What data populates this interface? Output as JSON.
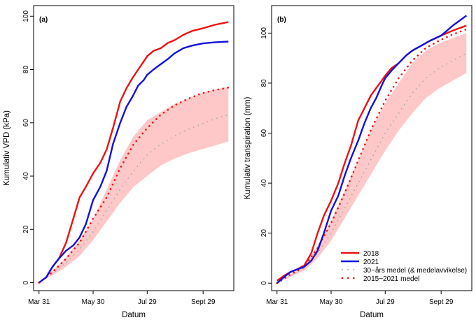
{
  "figure": {
    "x_axis_label": "Datum",
    "x_tick_labels": [
      "Mar 31",
      "May 30",
      "Jul 29",
      "Sept 29"
    ]
  },
  "legend": {
    "items": [
      {
        "label": "2018",
        "color": "#ee1111",
        "style": "solid"
      },
      {
        "label": "2021",
        "color": "#1111dd",
        "style": "solid"
      },
      {
        "label": "30−års medel (& medelavvikelse)",
        "color": "#aaaaaa",
        "style": "dotted"
      },
      {
        "label": "2015−2021 medel",
        "color": "#ee1111",
        "style": "dotted"
      }
    ]
  },
  "colors": {
    "red": "#ee1111",
    "blue": "#1111dd",
    "band": "#ffc8c8",
    "grey": "#aaaaaa"
  },
  "chart_data": [
    {
      "type": "line",
      "panel_label": "(a)",
      "xlabel": "Datum",
      "ylabel": "Kumulativ VPD (kPa)",
      "x_ticks": [
        "Mar 31",
        "May 30",
        "Jul 29",
        "Sept 29"
      ],
      "x_tick_days": [
        0,
        60,
        120,
        182
      ],
      "y_ticks": [
        0,
        20,
        40,
        60,
        80,
        100
      ],
      "xlim": [
        -6,
        216
      ],
      "ylim": [
        -3,
        104
      ],
      "x_unit": "days since Mar 31",
      "series": [
        {
          "name": "2018",
          "style": "solid",
          "color": "#ee1111",
          "x": [
            0,
            8,
            15,
            22,
            30,
            38,
            45,
            52,
            60,
            68,
            75,
            82,
            90,
            97,
            104,
            110,
            116,
            120,
            127,
            135,
            143,
            150,
            160,
            170,
            182,
            195,
            210
          ],
          "y": [
            0,
            2,
            6,
            9,
            15,
            24,
            32,
            36,
            41,
            45,
            50,
            58,
            68,
            73,
            77,
            80,
            83,
            85,
            87,
            88,
            90,
            91,
            93,
            94.5,
            95.5,
            96.8,
            97.8
          ]
        },
        {
          "name": "2021",
          "style": "solid",
          "color": "#1111dd",
          "x": [
            0,
            8,
            15,
            22,
            30,
            38,
            45,
            52,
            60,
            68,
            75,
            82,
            90,
            97,
            104,
            110,
            116,
            120,
            127,
            135,
            143,
            150,
            160,
            170,
            182,
            195,
            210
          ],
          "y": [
            0,
            2,
            6,
            9,
            12,
            14,
            17,
            22,
            31,
            36,
            42,
            52,
            60,
            66,
            70,
            74,
            76,
            78,
            80,
            82,
            84,
            86,
            88,
            89,
            89.8,
            90.2,
            90.5
          ]
        },
        {
          "name": "30−års medel (& medelavvikelse)",
          "style": "dotted",
          "color": "#aaaaaa",
          "x": [
            0,
            15,
            30,
            45,
            60,
            75,
            90,
            105,
            120,
            135,
            150,
            165,
            180,
            195,
            210
          ],
          "y": [
            0,
            3.5,
            7.5,
            12.5,
            19,
            27,
            35,
            42,
            48,
            52,
            55,
            57.5,
            59.5,
            61.5,
            63
          ],
          "band_lower": [
            0,
            2.8,
            6,
            10,
            16,
            23,
            30,
            36,
            40,
            44,
            46.5,
            48.5,
            50,
            51.5,
            53
          ],
          "band_upper": [
            0,
            4.5,
            9.5,
            16,
            24,
            35,
            46,
            55,
            61,
            64,
            67,
            69,
            71,
            72.5,
            73.5
          ]
        },
        {
          "name": "2015−2021 medel",
          "style": "dotted",
          "color": "#ee1111",
          "x": [
            0,
            15,
            30,
            45,
            60,
            75,
            90,
            105,
            120,
            135,
            150,
            165,
            180,
            195,
            210
          ],
          "y": [
            0,
            4,
            9,
            15,
            24,
            32,
            43,
            52,
            58,
            63,
            66.5,
            69,
            71,
            72.3,
            73.2
          ]
        }
      ]
    },
    {
      "type": "line",
      "panel_label": "(b)",
      "xlabel": "Datum",
      "ylabel": "Kumulativ transpiration (mm)",
      "x_ticks": [
        "Mar 31",
        "May 30",
        "Jul 29",
        "Sept 29"
      ],
      "x_tick_days": [
        0,
        60,
        120,
        182
      ],
      "y_ticks": [
        0,
        20,
        40,
        60,
        80,
        100
      ],
      "xlim": [
        -6,
        216
      ],
      "ylim": [
        -3,
        111
      ],
      "x_unit": "days since Mar 31",
      "series": [
        {
          "name": "2018",
          "style": "solid",
          "color": "#ee1111",
          "x": [
            0,
            8,
            15,
            22,
            30,
            38,
            45,
            52,
            60,
            68,
            75,
            82,
            90,
            97,
            104,
            110,
            116,
            120,
            127,
            135,
            143,
            150,
            160,
            170,
            182,
            195,
            210
          ],
          "y": [
            1,
            3,
            4.5,
            5.5,
            7,
            12,
            20,
            27,
            33,
            40,
            48,
            55,
            65,
            70,
            75,
            78,
            81,
            83,
            86,
            88,
            91,
            93,
            95,
            97,
            99,
            101,
            103
          ]
        },
        {
          "name": "2021",
          "style": "solid",
          "color": "#1111dd",
          "x": [
            0,
            8,
            15,
            22,
            30,
            38,
            45,
            52,
            60,
            68,
            75,
            82,
            90,
            97,
            104,
            110,
            116,
            120,
            127,
            135,
            143,
            150,
            160,
            170,
            182,
            195,
            210
          ],
          "y": [
            0,
            2.5,
            4.5,
            5.5,
            6.5,
            9,
            13,
            20,
            29,
            35,
            43,
            50,
            57,
            64,
            70,
            74,
            79,
            82,
            85,
            88,
            91,
            93,
            95,
            97,
            99,
            103,
            107
          ]
        },
        {
          "name": "30−års medel (& medelavvikelse)",
          "style": "dotted",
          "color": "#aaaaaa",
          "x": [
            0,
            15,
            30,
            45,
            60,
            75,
            90,
            105,
            120,
            135,
            150,
            165,
            180,
            195,
            210
          ],
          "y": [
            0,
            3,
            6,
            12,
            20,
            30,
            40,
            50,
            60,
            68,
            76,
            82,
            86,
            89,
            92
          ],
          "band_lower": [
            0,
            2.5,
            5,
            10,
            17,
            26,
            35,
            44,
            53,
            61,
            68,
            74,
            78,
            81,
            84
          ],
          "band_upper": [
            0,
            3.5,
            7,
            15,
            25,
            37,
            49,
            62,
            72,
            80,
            88,
            93,
            96,
            98,
            100
          ]
        },
        {
          "name": "2015−2021 medel",
          "style": "dotted",
          "color": "#ee1111",
          "x": [
            0,
            15,
            30,
            45,
            60,
            75,
            90,
            105,
            120,
            135,
            150,
            165,
            180,
            195,
            210
          ],
          "y": [
            0,
            3.5,
            6.5,
            14,
            24,
            36,
            49,
            62,
            73,
            82,
            89,
            94,
            97,
            99.5,
            101.5
          ]
        }
      ]
    }
  ]
}
